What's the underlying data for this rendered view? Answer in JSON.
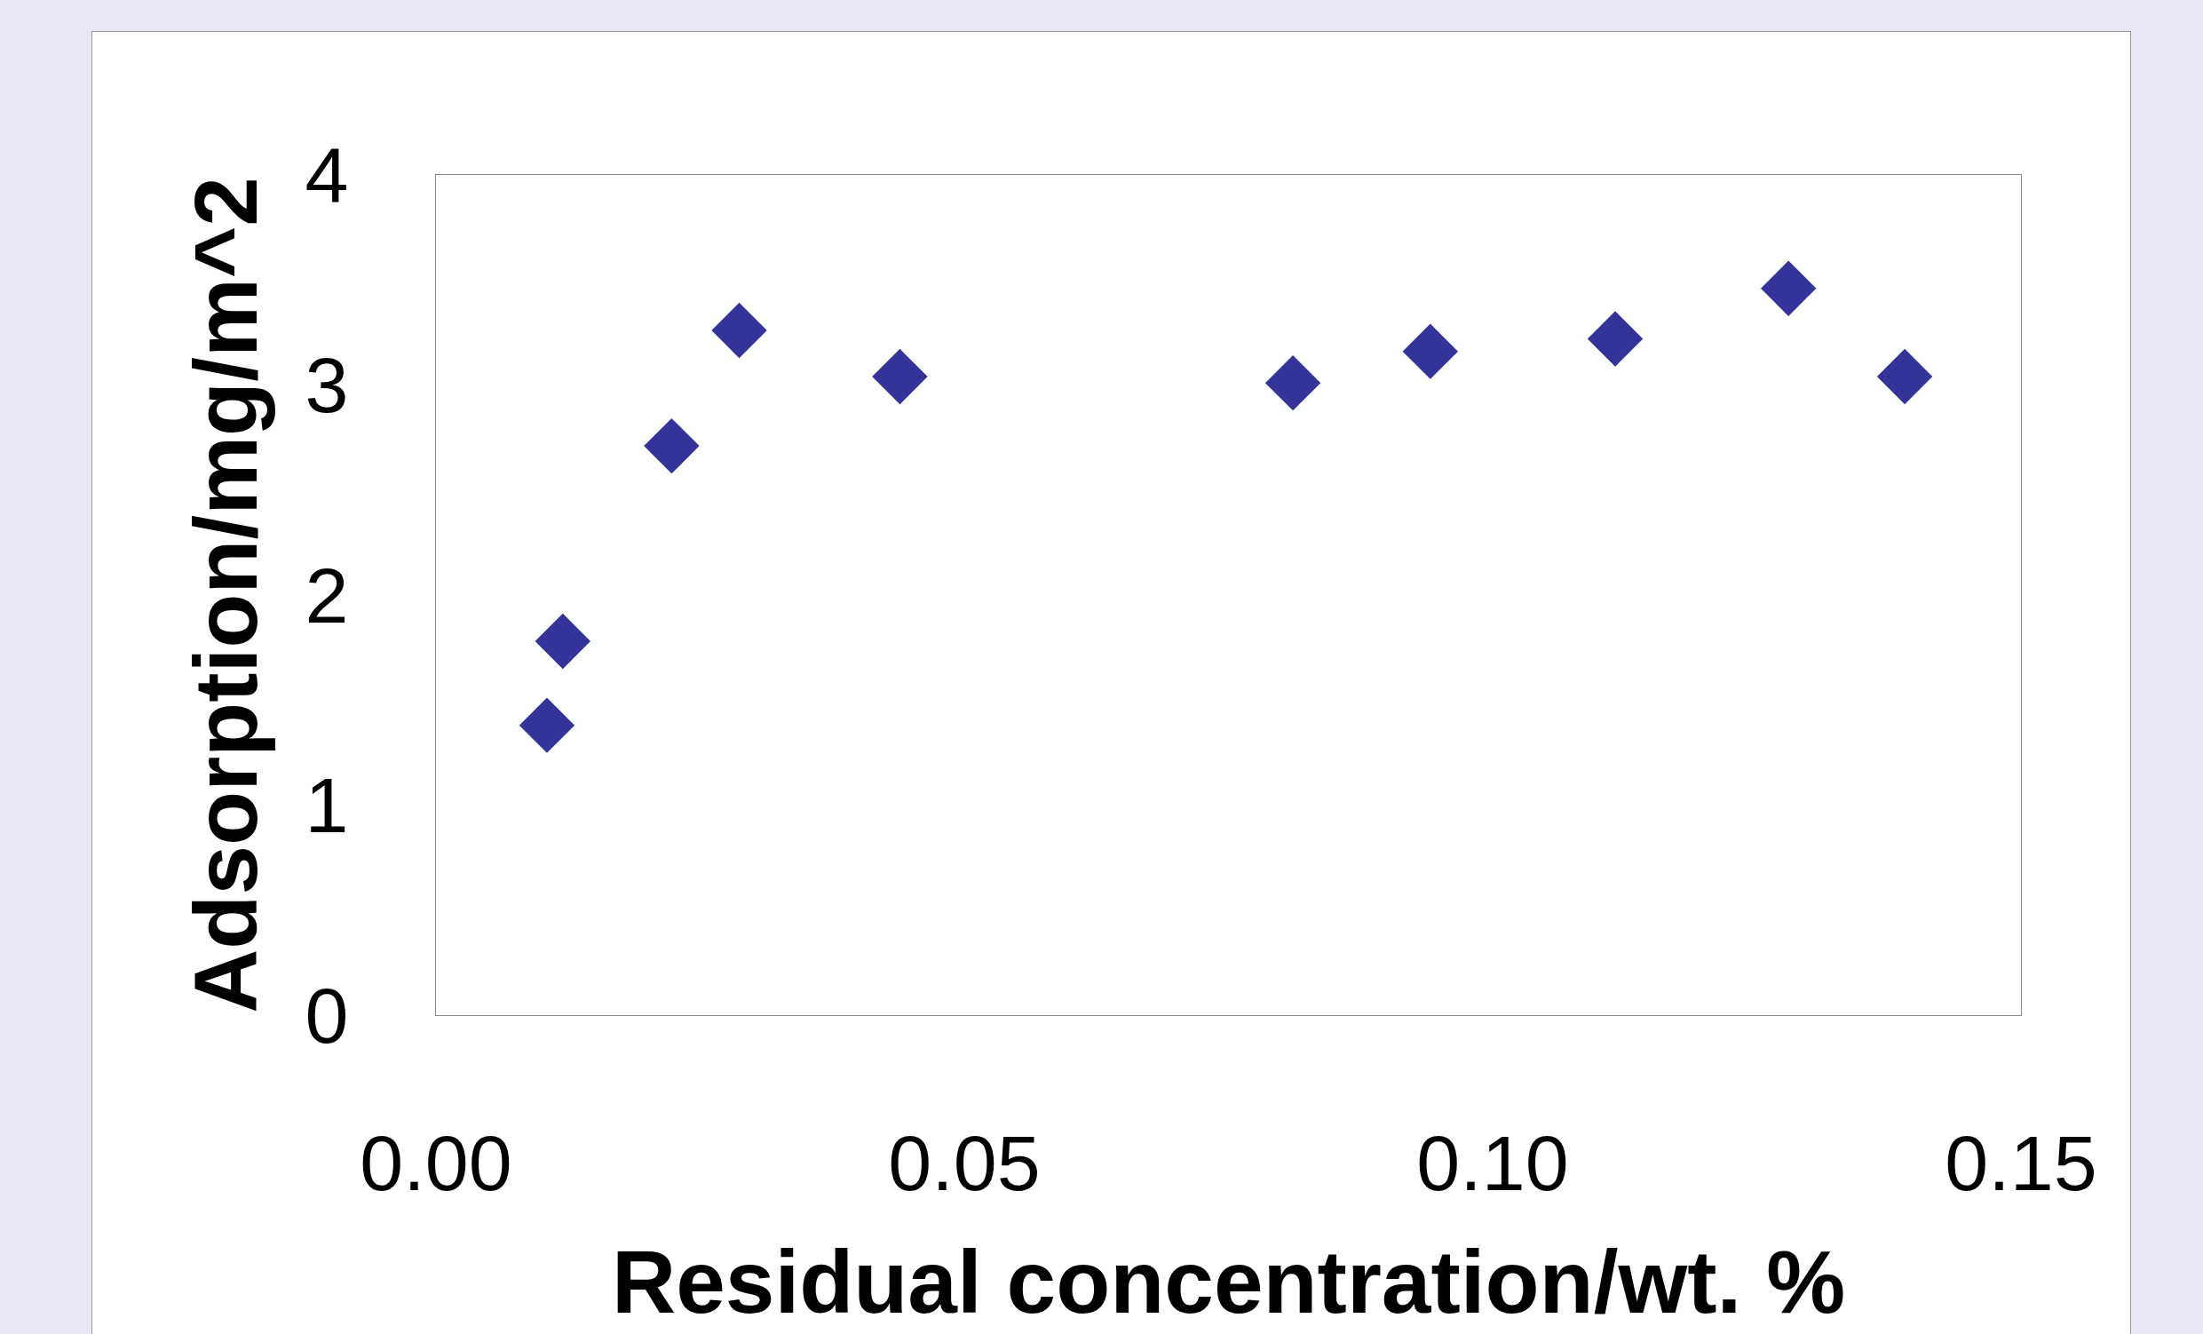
{
  "chart_data": {
    "type": "scatter",
    "xlabel": "Residual concentration/wt. %",
    "ylabel": "Adsorption/mg/m^2",
    "x": [
      0.0105,
      0.012,
      0.0223,
      0.0287,
      0.0439,
      0.0811,
      0.0941,
      0.1116,
      0.128,
      0.139
    ],
    "series": [
      {
        "color": "#333399",
        "values": [
          1.38,
          1.78,
          2.71,
          3.26,
          3.04,
          3.01,
          3.16,
          3.22,
          3.46,
          3.04
        ]
      }
    ],
    "marker": "diamond",
    "grid": false,
    "xlim": [
      0,
      0.15
    ],
    "xticks": [
      {
        "value": 0,
        "label": "0.00"
      },
      {
        "value": 0.05,
        "label": "0.05"
      },
      {
        "value": 0.1,
        "label": "0.10"
      },
      {
        "value": 0.15,
        "label": "0.15"
      }
    ],
    "ylim": [
      0,
      4
    ],
    "yticks": [
      0,
      1,
      2,
      3,
      4
    ]
  }
}
